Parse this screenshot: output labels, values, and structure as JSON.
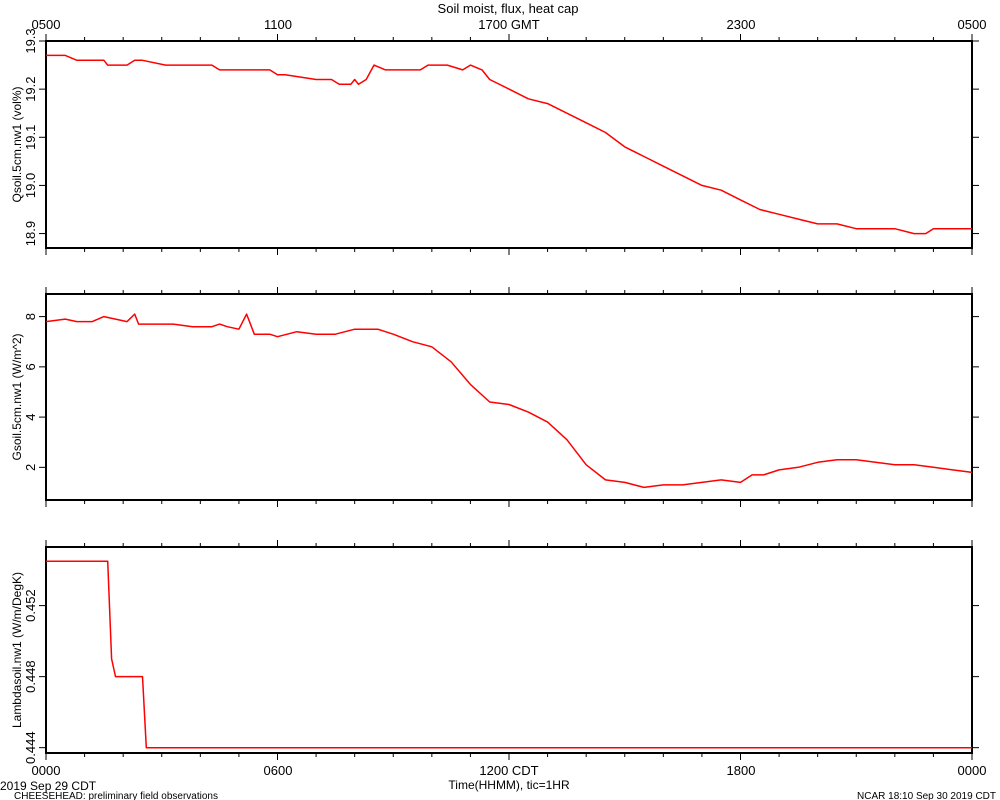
{
  "title": "Soil moist, flux, heat cap",
  "top_axis_ticks": [
    "0500",
    "1100",
    "1700 GMT",
    "2300",
    "0500"
  ],
  "bottom_axis_ticks": [
    "0000",
    "0600",
    "1200 CDT",
    "1800",
    "0000"
  ],
  "bottom_axis_label": "Time(HHMM), tic=1HR",
  "date_label": "2019 Sep 29 CDT",
  "footer_left": "CHEESEHEAD: preliminary field observations",
  "footer_right": "NCAR 18:10 Sep 30 2019 CDT",
  "colors": {
    "series": "#ff0000",
    "axis": "#000000",
    "background": "#ffffff"
  },
  "chart_data": [
    {
      "type": "line",
      "title": "",
      "xlabel": "",
      "ylabel": "Qsoil.5cm.nw1 (vol%)",
      "xlim": [
        0,
        24
      ],
      "ylim": [
        18.87,
        19.3
      ],
      "yticks": [
        "18.9",
        "19.0",
        "19.1",
        "19.2",
        "19.3"
      ],
      "grid": false,
      "series": [
        {
          "x": [
            0,
            0.5,
            0.8,
            1.5,
            1.6,
            1.8,
            2.1,
            2.3,
            2.5,
            3.1,
            4.3,
            4.5,
            4.6,
            4.8,
            5.1,
            5.8,
            6.0,
            6.2,
            7.0,
            7.4,
            7.6,
            7.7,
            7.9,
            8.0,
            8.1,
            8.3,
            8.5,
            8.8,
            9.7,
            9.9,
            10.0,
            10.4,
            10.8,
            11.0,
            11.3,
            11.5,
            12.0,
            12.5,
            13.0,
            13.5,
            14.0,
            14.5,
            15.0,
            15.5,
            16.0,
            16.5,
            17.0,
            17.5,
            18.0,
            18.5,
            19.0,
            19.5,
            20.0,
            20.5,
            21.0,
            21.5,
            22.0,
            22.5,
            22.8,
            23.0,
            23.3,
            24.0
          ],
          "y": [
            19.27,
            19.27,
            19.26,
            19.26,
            19.25,
            19.25,
            19.25,
            19.26,
            19.26,
            19.25,
            19.25,
            19.24,
            19.24,
            19.24,
            19.24,
            19.24,
            19.23,
            19.23,
            19.22,
            19.22,
            19.21,
            19.21,
            19.21,
            19.22,
            19.21,
            19.22,
            19.25,
            19.24,
            19.24,
            19.25,
            19.25,
            19.25,
            19.24,
            19.25,
            19.24,
            19.22,
            19.2,
            19.18,
            19.17,
            19.15,
            19.13,
            19.11,
            19.08,
            19.06,
            19.04,
            19.02,
            19.0,
            18.99,
            18.97,
            18.95,
            18.94,
            18.93,
            18.92,
            18.92,
            18.91,
            18.91,
            18.91,
            18.9,
            18.9,
            18.91,
            18.91,
            18.91
          ]
        }
      ]
    },
    {
      "type": "line",
      "title": "",
      "xlabel": "",
      "ylabel": "Gsoil.5cm.nw1 (W/m^2)",
      "xlim": [
        0,
        24
      ],
      "ylim": [
        0.7,
        8.9
      ],
      "yticks": [
        "2",
        "4",
        "6",
        "8"
      ],
      "grid": false,
      "series": [
        {
          "x": [
            0,
            0.5,
            0.8,
            1.2,
            1.5,
            1.8,
            2.1,
            2.3,
            2.4,
            2.6,
            3.3,
            3.8,
            4.3,
            4.5,
            4.7,
            5.0,
            5.2,
            5.4,
            5.6,
            5.8,
            6.0,
            6.5,
            7.0,
            7.5,
            8.0,
            8.3,
            8.6,
            9.0,
            9.5,
            10.0,
            10.5,
            11.0,
            11.5,
            12.0,
            12.5,
            13.0,
            13.5,
            14.0,
            14.5,
            15.0,
            15.5,
            16.0,
            16.5,
            17.0,
            17.5,
            18.0,
            18.3,
            18.6,
            18.8,
            19.0,
            19.5,
            20.0,
            20.5,
            21.0,
            21.5,
            22.0,
            22.5,
            23.0,
            23.5,
            24.0
          ],
          "y": [
            7.8,
            7.9,
            7.8,
            7.8,
            8.0,
            7.9,
            7.8,
            8.1,
            7.7,
            7.7,
            7.7,
            7.6,
            7.6,
            7.7,
            7.6,
            7.5,
            8.1,
            7.3,
            7.3,
            7.3,
            7.2,
            7.4,
            7.3,
            7.3,
            7.5,
            7.5,
            7.5,
            7.3,
            7.0,
            6.8,
            6.2,
            5.3,
            4.6,
            4.5,
            4.2,
            3.8,
            3.1,
            2.1,
            1.5,
            1.4,
            1.2,
            1.3,
            1.3,
            1.4,
            1.5,
            1.4,
            1.7,
            1.7,
            1.8,
            1.9,
            2.0,
            2.2,
            2.3,
            2.3,
            2.2,
            2.1,
            2.1,
            2.0,
            1.9,
            1.8
          ]
        }
      ]
    },
    {
      "type": "line",
      "title": "",
      "xlabel": "Time(HHMM), tic=1HR",
      "ylabel": "Lambdasoil.nw1 (W/m/DegK)",
      "xlim": [
        0,
        24
      ],
      "ylim": [
        0.4437,
        0.4553
      ],
      "yticks": [
        "0.444",
        "0.448",
        "0.452"
      ],
      "grid": false,
      "series": [
        {
          "x": [
            0,
            1.6,
            1.7,
            1.8,
            2.4,
            2.5,
            2.6,
            24.0
          ],
          "y": [
            0.4545,
            0.4545,
            0.449,
            0.448,
            0.448,
            0.448,
            0.444,
            0.444
          ]
        }
      ]
    }
  ]
}
